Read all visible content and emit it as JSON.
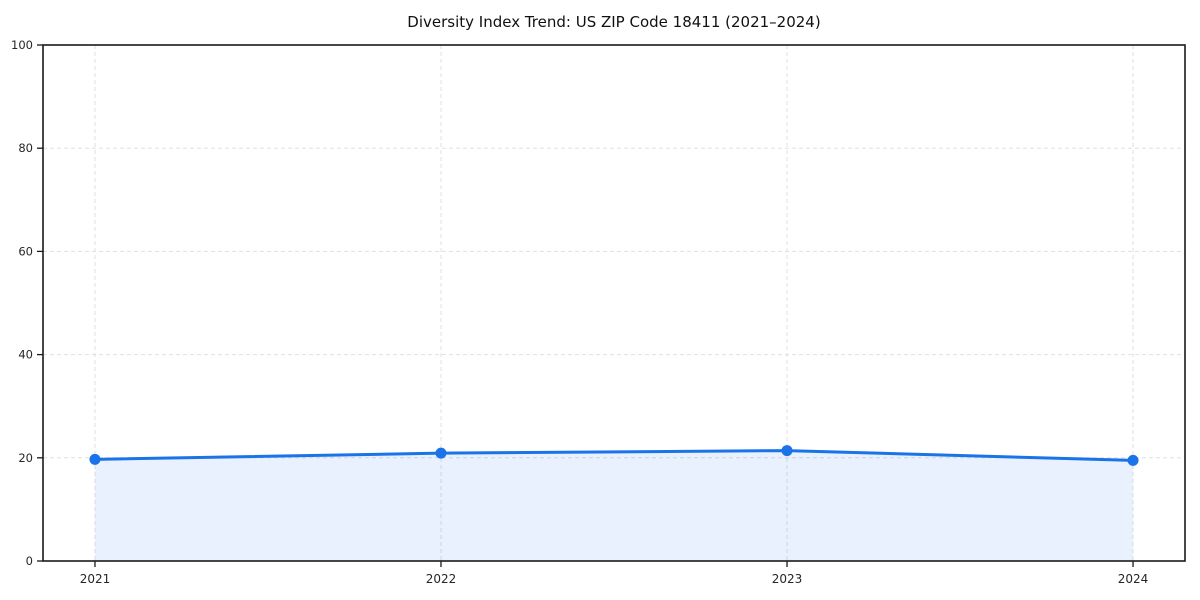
{
  "chart_data": {
    "type": "line",
    "title": "Diversity Index Trend: US ZIP Code 18411 (2021–2024)",
    "categories": [
      "2021",
      "2022",
      "2023",
      "2024"
    ],
    "series": [
      {
        "name": "Diversity Index",
        "values": [
          19.7,
          20.9,
          21.4,
          19.5
        ]
      }
    ],
    "xlabel": "",
    "ylabel": "",
    "ylim": [
      0,
      100
    ],
    "yticks": [
      0,
      20,
      40,
      60,
      80,
      100
    ],
    "grid": "dashed-both-axes",
    "legend_position": "none",
    "area_fill": true,
    "marker": "circle",
    "colors": {
      "line": "#1a73e8",
      "marker": "#1a73e8",
      "area_fill": "rgba(26,115,232,0.10)",
      "grid": "#e0e0e0",
      "axis": "#1a1a1a",
      "tick_text": "#262626",
      "background": "#ffffff"
    }
  }
}
